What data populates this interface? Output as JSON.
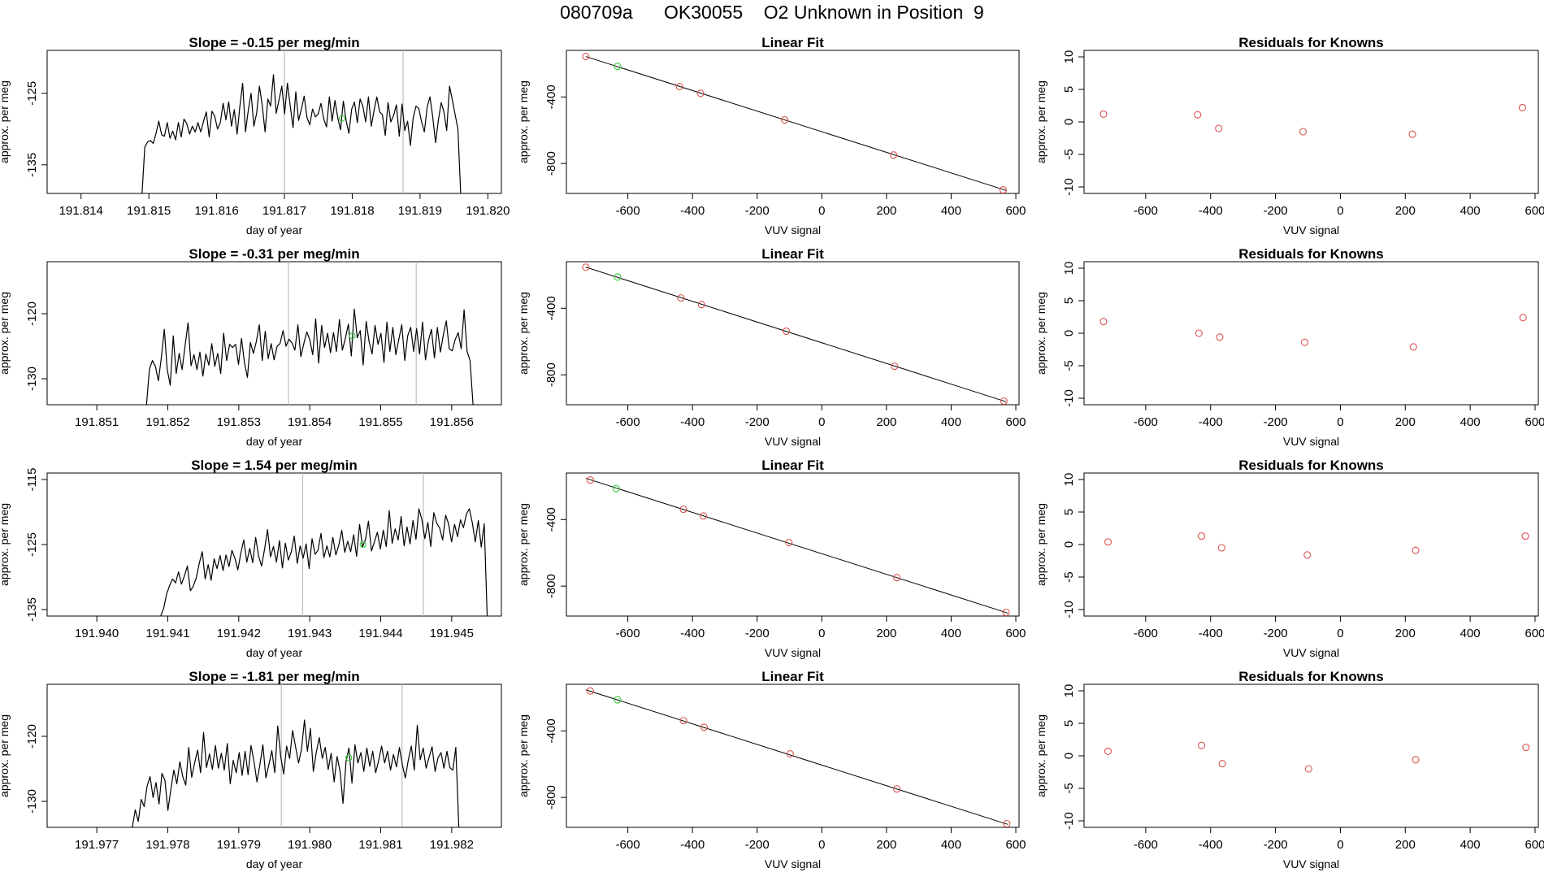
{
  "figure": {
    "title": "080709a      OK30055    O2 Unknown in Position  9"
  },
  "colors": {
    "trace": "#000000",
    "fit_line": "#000000",
    "known_points": "#d9534f",
    "unknown_point": "#33cc33",
    "guide_lines": "#bdbdbd",
    "axes": "#000000"
  },
  "chart_data": [
    {
      "type": "line",
      "row": 0,
      "col": 0,
      "title": "Slope =  -0.15  per meg/min",
      "xlabel": "day of year",
      "ylabel": "approx. per meg",
      "xlim": [
        191.8135,
        191.8202
      ],
      "ylim": [
        -139,
        -119
      ],
      "xticks": [
        "191.814",
        "191.815",
        "191.816",
        "191.817",
        "191.818",
        "191.819",
        "191.820"
      ],
      "yticks": [
        "-125",
        "-135"
      ],
      "vlines": [
        191.817,
        191.81875
      ],
      "series": [
        {
          "x_start": 191.8149,
          "x_end": 191.8196,
          "values": [
            -139.0,
            -132.5,
            -131.8,
            -131.6,
            -132.0,
            -130.6,
            -128.9,
            -130.8,
            -131.0,
            -129.1,
            -131.3,
            -130.3,
            -131.5,
            -129.1,
            -131.1,
            -128.6,
            -129.2,
            -130.7,
            -129.6,
            -130.4,
            -129.1,
            -130.4,
            -128.9,
            -127.6,
            -131.1,
            -127.5,
            -128.2,
            -130.0,
            -129.1,
            -126.4,
            -128.7,
            -126.2,
            -129.6,
            -127.3,
            -130.7,
            -126.8,
            -123.6,
            -130.4,
            -127.4,
            -125.0,
            -129.6,
            -127.8,
            -124.0,
            -126.7,
            -130.4,
            -125.8,
            -126.8,
            -122.4,
            -127.8,
            -125.9,
            -124.0,
            -127.9,
            -123.6,
            -126.7,
            -129.8,
            -124.8,
            -128.8,
            -127.2,
            -125.4,
            -128.4,
            -129.4,
            -127.2,
            -128.3,
            -127.9,
            -126.4,
            -128.6,
            -129.7,
            -125.5,
            -128.9,
            -126.0,
            -128.4,
            -130.1,
            -126.1,
            -128.8,
            -130.6,
            -127.2,
            -126.2,
            -129.1,
            -125.8,
            -126.8,
            -129.0,
            -125.5,
            -129.6,
            -127.4,
            -125.5,
            -127.6,
            -128.0,
            -130.9,
            -126.3,
            -129.0,
            -128.1,
            -126.6,
            -131.0,
            -126.5,
            -130.2,
            -128.9,
            -132.3,
            -128.4,
            -126.8,
            -127.1,
            -129.0,
            -130.4,
            -126.9,
            -125.5,
            -128.3,
            -131.9,
            -128.8,
            -126.3,
            -127.6,
            -130.2,
            -124.0,
            -125.9,
            -128.0,
            -130.0,
            -139.0
          ],
          "unknown": {
            "x": 191.81785,
            "y": -128.5
          }
        }
      ]
    },
    {
      "type": "scatter",
      "row": 0,
      "col": 1,
      "title": "Linear Fit",
      "xlabel": "VUV signal",
      "ylabel": "approx. per meg",
      "xlim": [
        -790,
        610
      ],
      "ylim": [
        -980,
        -120
      ],
      "xticks": [
        -600,
        -400,
        -200,
        0,
        200,
        400,
        600
      ],
      "yticks": [
        -400,
        -800
      ],
      "fit_line": [
        [
          -730,
          -157
        ],
        [
          570,
          -962
        ]
      ],
      "known_x": [
        -730,
        -440,
        -375,
        -115,
        222,
        561
      ],
      "known_y": [
        -157,
        -338,
        -378,
        -538,
        -749,
        -959
      ],
      "unknown": {
        "x": -632,
        "y": -216
      }
    },
    {
      "type": "scatter",
      "row": 0,
      "col": 2,
      "title": "Residuals for Knowns",
      "xlabel": "VUV signal",
      "ylabel": "approx. per meg",
      "xlim": [
        -790,
        610
      ],
      "ylim": [
        -11,
        11
      ],
      "xticks": [
        -600,
        -400,
        -200,
        0,
        200,
        400,
        600
      ],
      "yticks": [
        10,
        5,
        0,
        -5,
        -10
      ],
      "known_x": [
        -730,
        -440,
        -375,
        -115,
        222,
        561
      ],
      "known_y": [
        1.2,
        1.1,
        -1.0,
        -1.5,
        -1.9,
        2.2
      ]
    },
    {
      "type": "line",
      "row": 1,
      "col": 0,
      "title": "Slope =  -0.31  per meg/min",
      "xlabel": "day of year",
      "ylabel": "approx. per meg",
      "xlim": [
        191.8503,
        191.8567
      ],
      "ylim": [
        -134,
        -112
      ],
      "xticks": [
        "191.851",
        "191.852",
        "191.853",
        "191.854",
        "191.855",
        "191.856"
      ],
      "yticks": [
        "-120",
        "-130"
      ],
      "vlines": [
        191.8537,
        191.8555
      ],
      "series": [
        {
          "x_start": 191.8517,
          "x_end": 191.8563,
          "values": [
            -134.0,
            -128.5,
            -127.2,
            -128.1,
            -130.3,
            -126.8,
            -122.4,
            -128.6,
            -131.0,
            -123.4,
            -129.2,
            -126.1,
            -128.6,
            -124.9,
            -121.4,
            -128.0,
            -126.3,
            -128.6,
            -125.9,
            -129.6,
            -126.2,
            -127.9,
            -124.6,
            -128.1,
            -126.1,
            -129.2,
            -123.0,
            -127.2,
            -124.7,
            -125.2,
            -124.7,
            -127.8,
            -123.8,
            -127.5,
            -129.8,
            -124.4,
            -126.1,
            -124.3,
            -121.7,
            -127.2,
            -122.7,
            -126.9,
            -124.6,
            -127.1,
            -125.0,
            -124.6,
            -122.6,
            -125.0,
            -123.9,
            -124.5,
            -125.6,
            -121.7,
            -126.6,
            -124.6,
            -122.8,
            -124.0,
            -126.3,
            -120.8,
            -127.6,
            -121.8,
            -125.2,
            -123.0,
            -126.0,
            -122.9,
            -125.8,
            -120.9,
            -125.6,
            -123.8,
            -121.6,
            -126.5,
            -119.3,
            -123.7,
            -122.6,
            -127.9,
            -121.2,
            -124.3,
            -126.2,
            -121.8,
            -124.7,
            -123.0,
            -127.5,
            -121.3,
            -125.8,
            -122.1,
            -126.3,
            -124.0,
            -121.7,
            -127.2,
            -123.4,
            -122.1,
            -125.8,
            -122.3,
            -126.2,
            -121.3,
            -127.1,
            -124.1,
            -122.4,
            -126.8,
            -122.1,
            -125.9,
            -123.3,
            -121.1,
            -125.4,
            -125.7,
            -124.0,
            -122.9,
            -125.4,
            -119.4,
            -125.8,
            -127.2,
            -134.0
          ],
          "unknown": {
            "x": 191.8546,
            "y": -123.4
          }
        }
      ]
    },
    {
      "type": "scatter",
      "row": 1,
      "col": 1,
      "title": "Linear Fit",
      "xlabel": "VUV signal",
      "ylabel": "approx. per meg",
      "xlim": [
        -790,
        610
      ],
      "ylim": [
        -980,
        -120
      ],
      "xticks": [
        -600,
        -400,
        -200,
        0,
        200,
        400,
        600
      ],
      "yticks": [
        -400,
        -800
      ],
      "fit_line": [
        [
          -730,
          -153
        ],
        [
          570,
          -962
        ]
      ],
      "known_x": [
        -730,
        -436,
        -372,
        -110,
        225,
        563
      ],
      "known_y": [
        -153,
        -338,
        -378,
        -538,
        -749,
        -958
      ],
      "unknown": {
        "x": -632,
        "y": -212
      }
    },
    {
      "type": "scatter",
      "row": 1,
      "col": 2,
      "title": "Residuals for Knowns",
      "xlabel": "VUV signal",
      "ylabel": "approx. per meg",
      "xlim": [
        -790,
        610
      ],
      "ylim": [
        -11,
        11
      ],
      "xticks": [
        -600,
        -400,
        -200,
        0,
        200,
        400,
        600
      ],
      "yticks": [
        10,
        5,
        0,
        -5,
        -10
      ],
      "known_x": [
        -730,
        -436,
        -372,
        -110,
        225,
        563
      ],
      "known_y": [
        1.8,
        0.0,
        -0.6,
        -1.4,
        -2.1,
        2.4
      ]
    },
    {
      "type": "line",
      "row": 2,
      "col": 0,
      "title": "Slope =  1.54  per meg/min",
      "xlabel": "day of year",
      "ylabel": "approx. per meg",
      "xlim": [
        191.9393,
        191.9457
      ],
      "ylim": [
        -136,
        -114
      ],
      "xticks": [
        "191.940",
        "191.941",
        "191.942",
        "191.943",
        "191.944",
        "191.945"
      ],
      "yticks": [
        "-115",
        "-125",
        "-135"
      ],
      "vlines": [
        191.9429,
        191.9446
      ],
      "series": [
        {
          "x_start": 191.9409,
          "x_end": 191.9455,
          "values": [
            -136.0,
            -134.8,
            -132.6,
            -131.3,
            -130.3,
            -130.9,
            -129.2,
            -131.1,
            -129.8,
            -128.3,
            -132.1,
            -131.4,
            -130.1,
            -127.9,
            -126.1,
            -130.3,
            -128.1,
            -130.5,
            -127.2,
            -128.7,
            -126.7,
            -129.0,
            -126.6,
            -128.4,
            -125.9,
            -127.1,
            -128.9,
            -126.3,
            -124.3,
            -127.7,
            -125.6,
            -127.8,
            -123.9,
            -126.8,
            -128.3,
            -125.7,
            -122.7,
            -126.9,
            -125.3,
            -127.7,
            -124.4,
            -128.6,
            -124.8,
            -127.4,
            -126.1,
            -123.7,
            -127.9,
            -125.2,
            -127.1,
            -124.9,
            -128.7,
            -124.1,
            -126.5,
            -125.9,
            -123.3,
            -127.0,
            -125.2,
            -126.9,
            -123.9,
            -126.6,
            -125.1,
            -122.8,
            -126.2,
            -124.5,
            -126.1,
            -123.5,
            -126.8,
            -121.9,
            -125.4,
            -124.2,
            -121.4,
            -126.0,
            -124.6,
            -123.1,
            -125.7,
            -122.8,
            -125.3,
            -119.8,
            -124.8,
            -122.6,
            -124.3,
            -120.7,
            -125.2,
            -122.3,
            -124.9,
            -121.3,
            -124.2,
            -119.5,
            -121.2,
            -124.1,
            -121.6,
            -125.3,
            -120.1,
            -121.7,
            -122.5,
            -124.3,
            -120.5,
            -121.8,
            -124.6,
            -121.9,
            -123.8,
            -121.2,
            -122.4,
            -120.3,
            -119.5,
            -121.7,
            -124.6,
            -121.3,
            -125.4,
            -121.8,
            -136.0
          ],
          "unknown": {
            "x": 191.94375,
            "y": -125.0
          }
        }
      ]
    },
    {
      "type": "scatter",
      "row": 2,
      "col": 1,
      "title": "Linear Fit",
      "xlabel": "VUV signal",
      "ylabel": "approx. per meg",
      "xlim": [
        -790,
        610
      ],
      "ylim": [
        -980,
        -120
      ],
      "xticks": [
        -600,
        -400,
        -200,
        0,
        200,
        400,
        600
      ],
      "yticks": [
        -400,
        -800
      ],
      "fit_line": [
        [
          -730,
          -152
        ],
        [
          575,
          -962
        ]
      ],
      "known_x": [
        -716,
        -428,
        -366,
        -102,
        232,
        570
      ],
      "known_y": [
        -162,
        -338,
        -378,
        -538,
        -749,
        -958
      ],
      "unknown": {
        "x": -636,
        "y": -213
      }
    },
    {
      "type": "scatter",
      "row": 2,
      "col": 2,
      "title": "Residuals for Knowns",
      "xlabel": "VUV signal",
      "ylabel": "approx. per meg",
      "xlim": [
        -790,
        610
      ],
      "ylim": [
        -11,
        11
      ],
      "xticks": [
        -600,
        -400,
        -200,
        0,
        200,
        400,
        600
      ],
      "yticks": [
        10,
        5,
        0,
        -5,
        -10
      ],
      "known_x": [
        -716,
        -428,
        -366,
        -102,
        232,
        570
      ],
      "known_y": [
        0.4,
        1.3,
        -0.5,
        -1.6,
        -0.9,
        1.3
      ]
    },
    {
      "type": "line",
      "row": 3,
      "col": 0,
      "title": "Slope =  -1.81  per meg/min",
      "xlabel": "day of year",
      "ylabel": "approx. per meg",
      "xlim": [
        191.9763,
        191.9827
      ],
      "ylim": [
        -134,
        -112
      ],
      "xticks": [
        "191.977",
        "191.978",
        "191.979",
        "191.980",
        "191.981",
        "191.982"
      ],
      "yticks": [
        "-120",
        "-130"
      ],
      "vlines": [
        191.9796,
        191.9813
      ],
      "series": [
        {
          "x_start": 191.9775,
          "x_end": 191.9821,
          "values": [
            -134.0,
            -131.3,
            -133.1,
            -129.7,
            -130.8,
            -127.6,
            -126.2,
            -129.4,
            -127.1,
            -130.4,
            -125.7,
            -126.8,
            -131.4,
            -128.1,
            -125.2,
            -127.3,
            -123.9,
            -126.2,
            -127.5,
            -121.7,
            -126.3,
            -124.1,
            -122.1,
            -125.6,
            -119.4,
            -124.8,
            -122.7,
            -125.1,
            -121.4,
            -124.9,
            -122.6,
            -125.2,
            -121.1,
            -127.3,
            -123.7,
            -125.6,
            -122.5,
            -126.0,
            -122.3,
            -125.9,
            -121.4,
            -123.9,
            -127.0,
            -124.3,
            -121.3,
            -126.4,
            -124.4,
            -122.2,
            -125.6,
            -118.4,
            -123.1,
            -125.8,
            -121.5,
            -123.4,
            -119.1,
            -121.6,
            -124.1,
            -122.0,
            -117.5,
            -122.3,
            -118.8,
            -125.4,
            -122.4,
            -120.2,
            -123.4,
            -121.7,
            -125.1,
            -122.6,
            -127.0,
            -123.1,
            -125.4,
            -130.3,
            -123.9,
            -121.8,
            -127.2,
            -121.3,
            -124.1,
            -122.5,
            -125.4,
            -121.8,
            -124.6,
            -122.3,
            -125.6,
            -123.7,
            -121.5,
            -124.1,
            -122.3,
            -125.2,
            -122.8,
            -124.7,
            -121.7,
            -124.4,
            -126.4,
            -123.6,
            -121.5,
            -125.2,
            -118.3,
            -123.6,
            -121.8,
            -124.9,
            -123.2,
            -121.6,
            -125.4,
            -123.3,
            -122.5,
            -124.9,
            -122.3,
            -124.8,
            -125.2,
            -121.7,
            -134.0
          ],
          "unknown": {
            "x": 191.98055,
            "y": -123.3
          }
        }
      ]
    },
    {
      "type": "scatter",
      "row": 3,
      "col": 1,
      "title": "Linear Fit",
      "xlabel": "VUV signal",
      "ylabel": "approx. per meg",
      "xlim": [
        -790,
        610
      ],
      "ylim": [
        -980,
        -120
      ],
      "xticks": [
        -600,
        -400,
        -200,
        0,
        200,
        400,
        600
      ],
      "yticks": [
        -400,
        -800
      ],
      "fit_line": [
        [
          -730,
          -153
        ],
        [
          575,
          -962
        ]
      ],
      "known_x": [
        -716,
        -428,
        -364,
        -98,
        232,
        572
      ],
      "known_y": [
        -160,
        -338,
        -378,
        -538,
        -749,
        -958
      ],
      "unknown": {
        "x": -632,
        "y": -213
      }
    },
    {
      "type": "scatter",
      "row": 3,
      "col": 2,
      "title": "Residuals for Knowns",
      "xlabel": "VUV signal",
      "ylabel": "approx. per meg",
      "xlim": [
        -790,
        610
      ],
      "ylim": [
        -11,
        11
      ],
      "xticks": [
        -600,
        -400,
        -200,
        0,
        200,
        400,
        600
      ],
      "yticks": [
        10,
        5,
        0,
        -5,
        -10
      ],
      "known_x": [
        -716,
        -428,
        -364,
        -98,
        232,
        572
      ],
      "known_y": [
        0.7,
        1.6,
        -1.2,
        -2.0,
        -0.6,
        1.3
      ]
    }
  ]
}
